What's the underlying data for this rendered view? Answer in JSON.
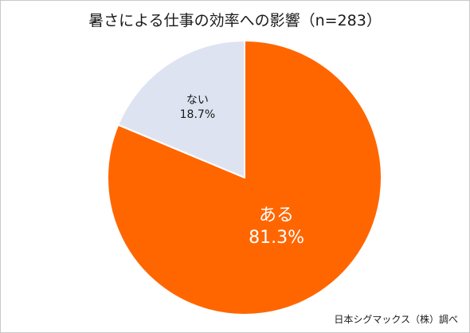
{
  "chart_data": {
    "type": "pie",
    "title": "暑さによる仕事の効率への影響（n=283）",
    "slices": [
      {
        "label": "ある",
        "value": 81.3,
        "value_label": "81.3%",
        "color": "#ff6600",
        "label_color": "#ffffff"
      },
      {
        "label": "ない",
        "value": 18.7,
        "value_label": "18.7%",
        "color": "#dde3f1",
        "label_color": "#1a1a1a"
      }
    ],
    "start": "12 o'clock",
    "direction": "clockwise",
    "legend": "none",
    "slice_border_color": "#ffffff"
  },
  "source": "日本シグマックス（株）調べ"
}
